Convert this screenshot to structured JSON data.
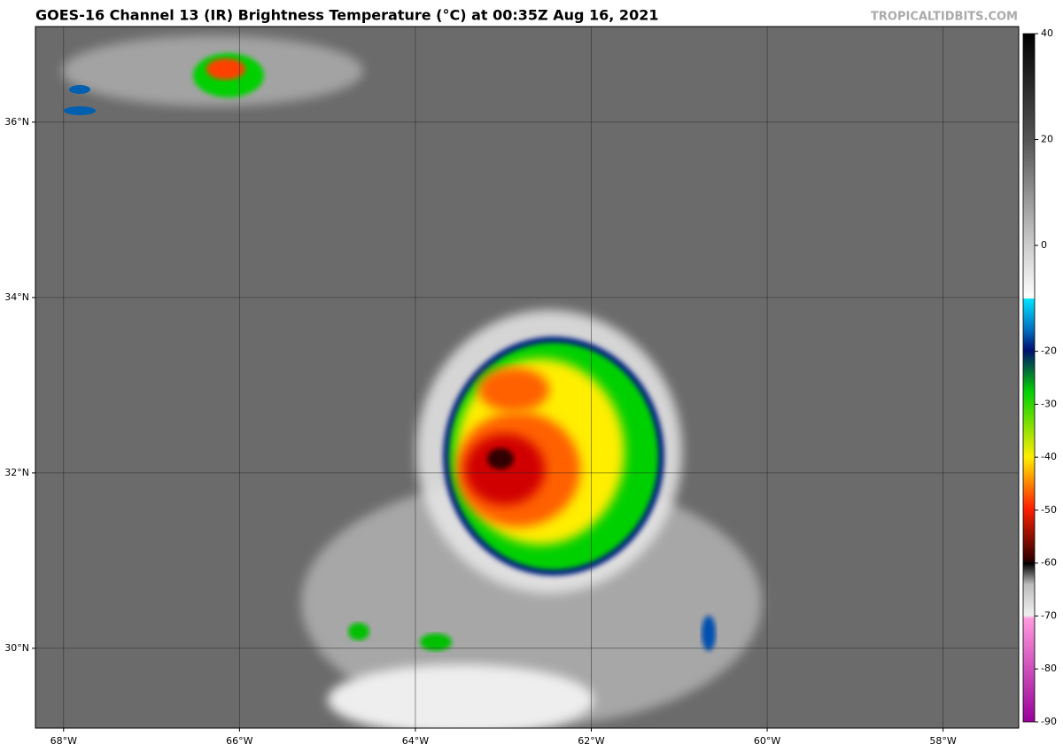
{
  "title": "GOES-16 Channel 13 (IR) Brightness Temperature (°C) at 00:35Z Aug 16, 2021",
  "watermark": "TROPICALTIDBITS.COM",
  "map": {
    "xlim": [
      -68.32,
      -57.14
    ],
    "ylim": [
      29.09,
      37.09
    ],
    "xticks": [
      {
        "value": -68,
        "label": "68°W"
      },
      {
        "value": -66,
        "label": "66°W"
      },
      {
        "value": -64,
        "label": "64°W"
      },
      {
        "value": -62,
        "label": "62°W"
      },
      {
        "value": -60,
        "label": "60°W"
      },
      {
        "value": -58,
        "label": "58°W"
      }
    ],
    "yticks": [
      {
        "value": 30,
        "label": "30°N"
      },
      {
        "value": 32,
        "label": "32°N"
      },
      {
        "value": 34,
        "label": "34°N"
      },
      {
        "value": 36,
        "label": "36°N"
      }
    ]
  },
  "colorbar": {
    "lim": [
      -90,
      40
    ],
    "ticks": [
      40,
      20,
      0,
      -20,
      -30,
      -40,
      -50,
      -60,
      -70,
      -80,
      -90
    ]
  }
}
